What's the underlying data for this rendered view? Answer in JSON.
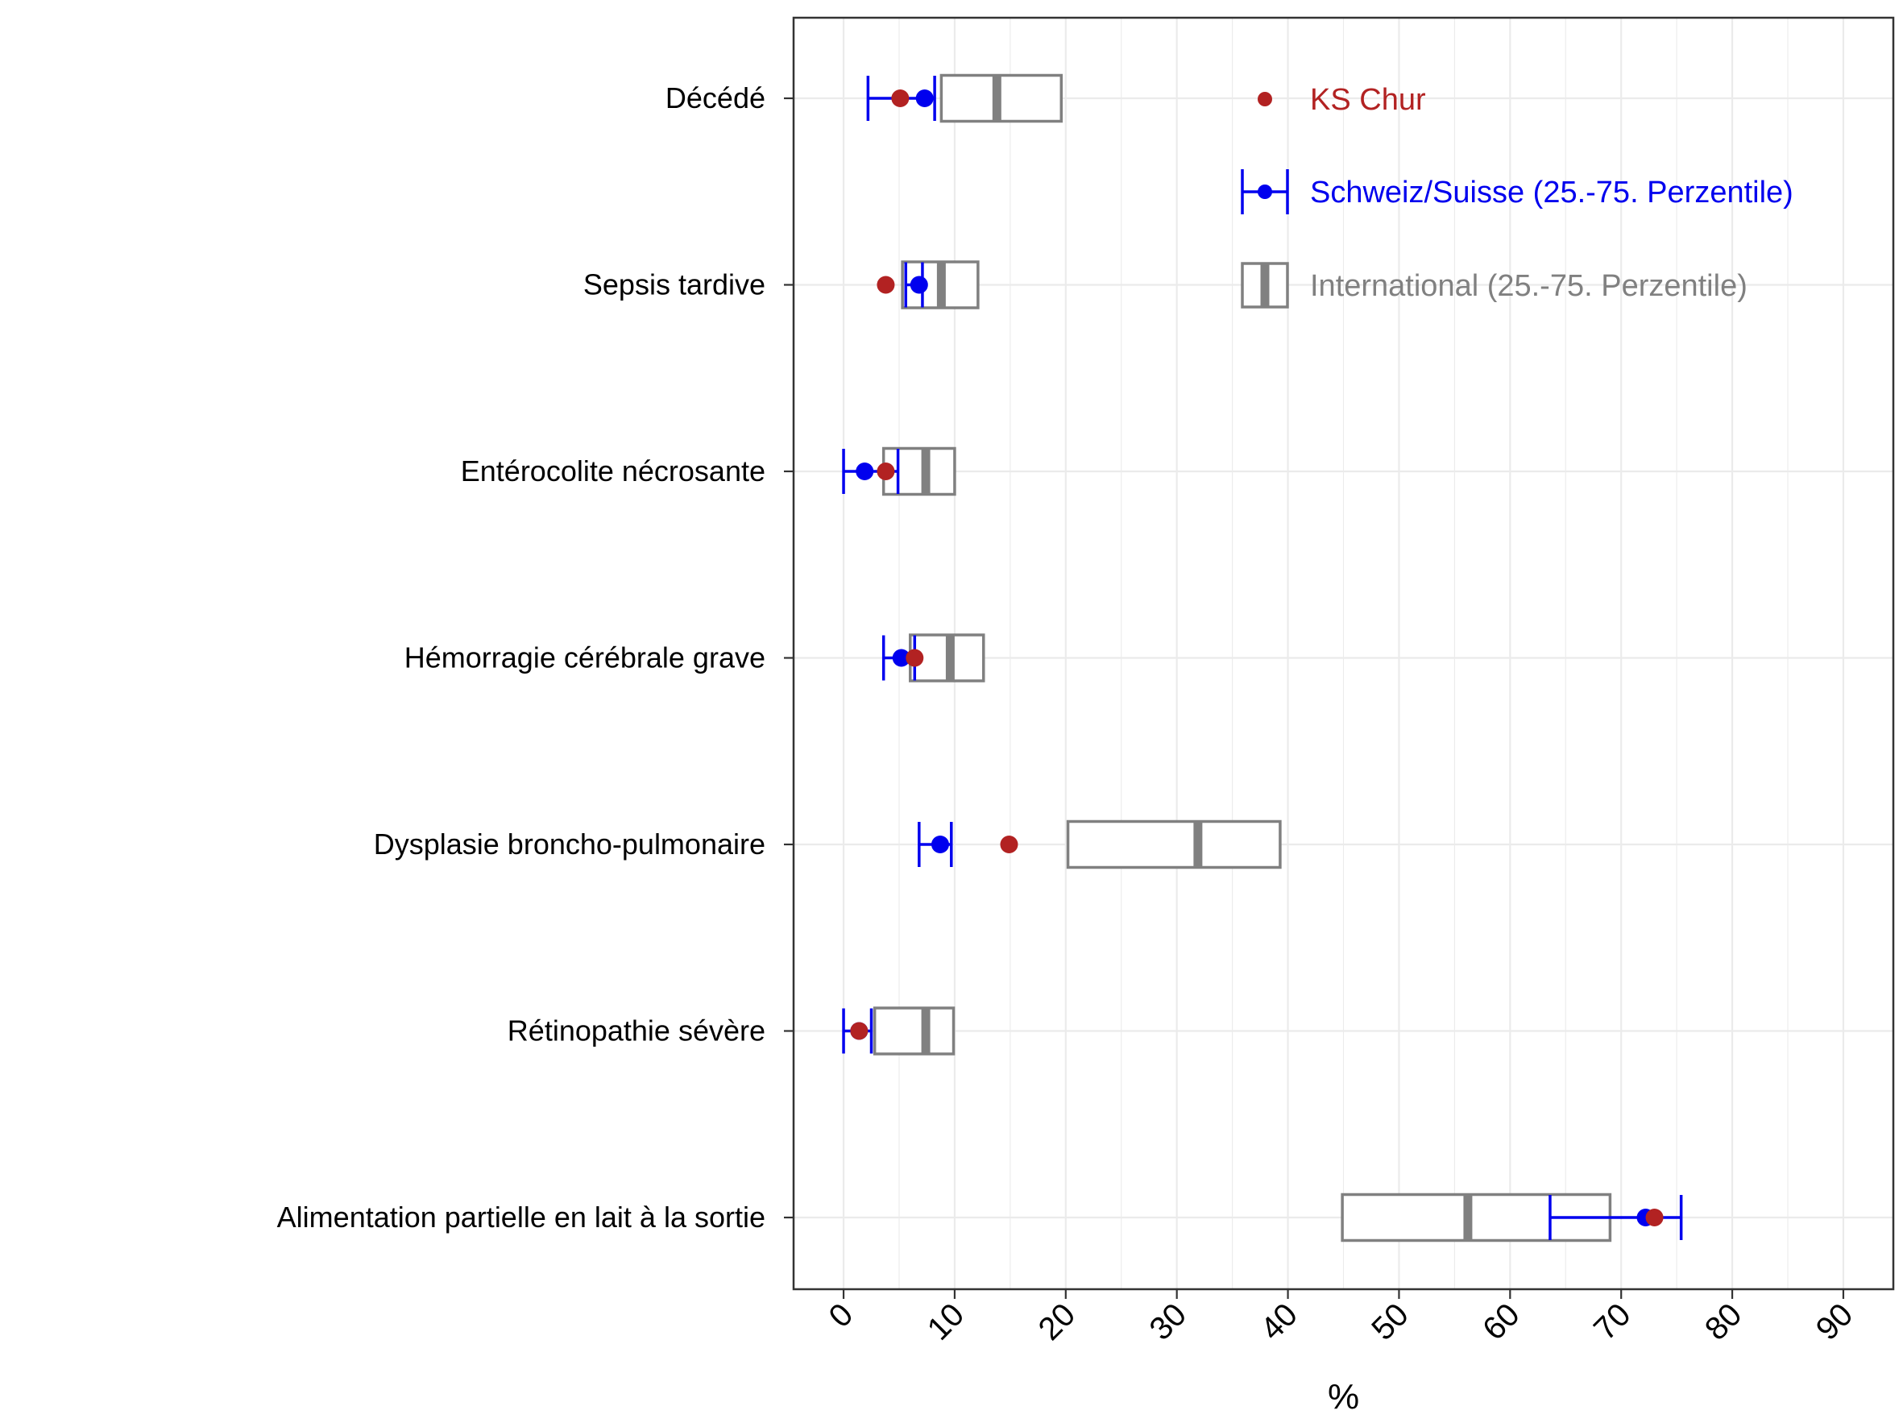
{
  "chart_data": {
    "type": "box",
    "xlabel": "%",
    "xlim": [
      -4.5,
      94.5
    ],
    "x_ticks": [
      "0",
      "10",
      "20",
      "30",
      "40",
      "50",
      "60",
      "70",
      "80",
      "90"
    ],
    "x_tick_values": [
      0,
      10,
      20,
      30,
      40,
      50,
      60,
      70,
      80,
      90
    ],
    "grid": true,
    "legend_position": "top-right",
    "categories": [
      "Décédé",
      "Sepsis tardive",
      "Entérocolite nécrosante",
      "Hémorragie cérébrale grave",
      "Dysplasie broncho-pulmonaire",
      "Rétinopathie sévère",
      "Alimentation partielle en lait à la sortie"
    ],
    "series": [
      {
        "name": "KS Chur",
        "type": "point",
        "color": "#b22222",
        "values": [
          5.1,
          3.8,
          3.8,
          6.4,
          14.9,
          1.4,
          73.0
        ]
      },
      {
        "name": "Schweiz/Suisse (25.-75. Perzentile)",
        "type": "point-range",
        "color": "#0000ee",
        "values": [
          7.3,
          6.8,
          1.9,
          5.2,
          8.7,
          1.4,
          72.2
        ],
        "q1": [
          2.2,
          5.6,
          0.0,
          3.6,
          6.8,
          0.0,
          63.6
        ],
        "q3": [
          8.2,
          7.1,
          4.9,
          6.4,
          9.7,
          2.5,
          75.4
        ]
      },
      {
        "name": "International (25.-75. Perzentile)",
        "type": "box",
        "color": "#808080",
        "q1": [
          8.8,
          5.3,
          3.6,
          6.0,
          20.2,
          2.8,
          44.9
        ],
        "median": [
          13.8,
          8.8,
          7.4,
          9.6,
          31.9,
          7.4,
          56.2
        ],
        "q3": [
          19.6,
          12.1,
          10.0,
          12.6,
          39.3,
          9.9,
          69.0
        ]
      }
    ]
  }
}
